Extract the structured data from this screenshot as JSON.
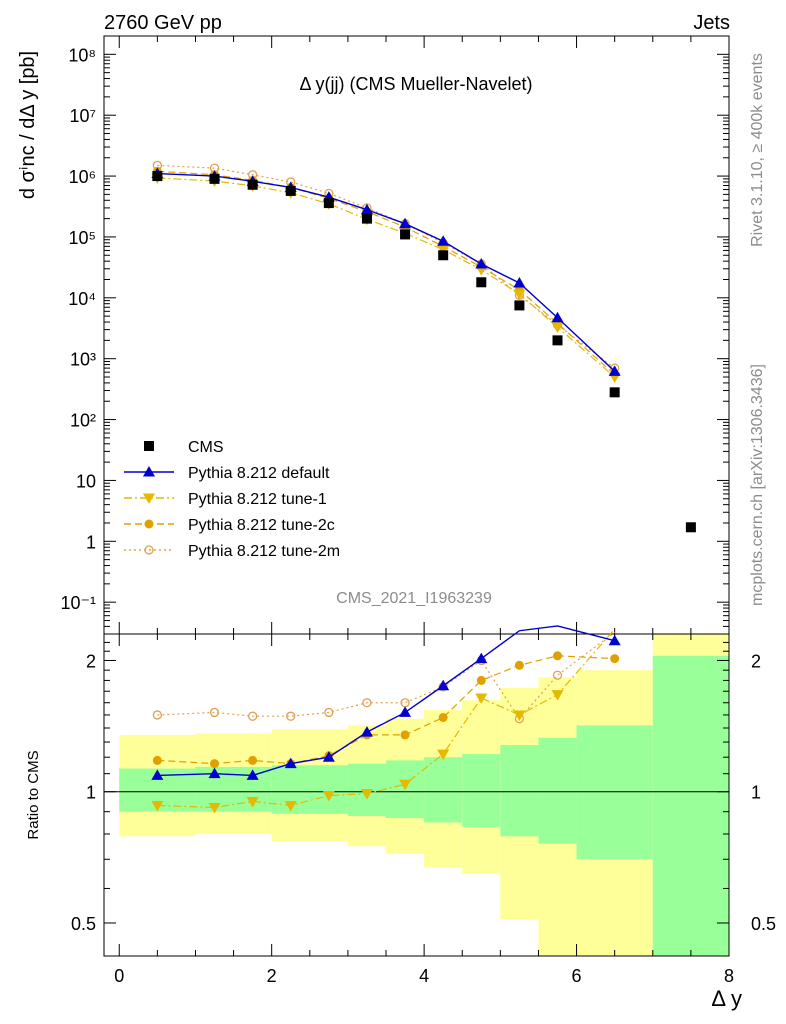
{
  "header": {
    "left": "2760 GeV pp",
    "right": "Jets"
  },
  "side_labels": {
    "rivet": "Rivet 3.1.10, ≥ 400k events",
    "mcplots": "mcplots.cern.ch [arXiv:1306.3436]"
  },
  "chart_data": [
    {
      "type": "scatter",
      "title": "Δ y(jj) (CMS Mueller-Navelet)",
      "ylabel": "d σⁱnc / dΔ y [pb]",
      "xlabel": "Δ y",
      "yscale": "log",
      "ylim": [
        0.03,
        200000000
      ],
      "xlim": [
        -0.2,
        8.0
      ],
      "analysis_id": "CMS_2021_I1963239",
      "legend_position": "bottom-left",
      "y_tick_labels": [
        "10⁻¹",
        "1",
        "10",
        "10²",
        "10³",
        "10⁴",
        "10⁵",
        "10⁶",
        "10⁷",
        "10⁸"
      ],
      "series": [
        {
          "name": "CMS",
          "marker": "square",
          "color": "#000000",
          "x": [
            0.5,
            1.25,
            1.75,
            2.25,
            2.75,
            3.25,
            3.75,
            4.25,
            4.75,
            5.25,
            5.75,
            6.5,
            7.5
          ],
          "y": [
            1000000,
            900000,
            720000,
            570000,
            360000,
            200000,
            110000,
            50000,
            18000,
            7500,
            2000,
            280,
            1.7
          ]
        },
        {
          "name": "Pythia 8.212 default",
          "marker": "triangle-up",
          "line": "solid",
          "color": "#0000cc",
          "x": [
            0.5,
            1.25,
            1.75,
            2.25,
            2.75,
            3.25,
            3.75,
            4.25,
            4.75,
            5.25,
            5.75,
            6.5
          ],
          "y": [
            1100000,
            1000000,
            820000,
            650000,
            450000,
            280000,
            165000,
            85000,
            36000,
            17500,
            4700,
            620
          ]
        },
        {
          "name": "Pythia 8.212 tune-1",
          "marker": "triangle-down",
          "line": "dashdot",
          "color": "#e6b800",
          "x": [
            0.5,
            1.25,
            1.75,
            2.25,
            2.75,
            3.25,
            3.75,
            4.25,
            4.75,
            5.25,
            5.75,
            6.5
          ],
          "y": [
            930000,
            830000,
            690000,
            530000,
            350000,
            195000,
            115000,
            62000,
            29000,
            11500,
            3300,
            500
          ]
        },
        {
          "name": "Pythia 8.212 tune-2c",
          "marker": "circle",
          "line": "dashed",
          "color": "#e0a000",
          "x": [
            0.5,
            1.25,
            1.75,
            2.25,
            2.75,
            3.25,
            3.75,
            4.25,
            4.75,
            5.25,
            5.75,
            6.5
          ],
          "y": [
            1200000,
            1050000,
            850000,
            650000,
            430000,
            260000,
            145000,
            70000,
            32000,
            13500,
            3800,
            550
          ]
        },
        {
          "name": "Pythia 8.212 tune-2m",
          "marker": "circle-open",
          "line": "dotted",
          "color": "#e0a050",
          "x": [
            0.5,
            1.25,
            1.75,
            2.25,
            2.75,
            3.25,
            3.75,
            4.25,
            4.75,
            5.25,
            5.75,
            6.5
          ],
          "y": [
            1500000,
            1350000,
            1050000,
            800000,
            520000,
            300000,
            165000,
            80000,
            36000,
            11000,
            3600,
            700
          ]
        }
      ]
    },
    {
      "type": "scatter",
      "ylabel": "Ratio to CMS",
      "xlabel": "Δ y",
      "yscale": "log",
      "ylim": [
        0.42,
        2.3
      ],
      "xlim": [
        -0.2,
        8.0
      ],
      "x_ticks": [
        0,
        2,
        4,
        6,
        8
      ],
      "y_ticks": [
        0.5,
        1,
        2
      ],
      "bands": {
        "edges": [
          0,
          1,
          2,
          3,
          3.5,
          4,
          4.5,
          5,
          5.5,
          6,
          7,
          8
        ],
        "stat_lo": [
          0.9,
          0.9,
          0.89,
          0.88,
          0.87,
          0.85,
          0.83,
          0.79,
          0.76,
          0.7,
          0.35
        ],
        "stat_hi": [
          1.13,
          1.14,
          1.15,
          1.16,
          1.18,
          1.2,
          1.22,
          1.28,
          1.33,
          1.42,
          2.05
        ],
        "syst_lo": [
          0.79,
          0.8,
          0.77,
          0.75,
          0.72,
          0.67,
          0.65,
          0.51,
          0.37,
          0.35,
          0.35
        ],
        "syst_hi": [
          1.35,
          1.36,
          1.39,
          1.42,
          1.47,
          1.54,
          1.62,
          1.73,
          1.83,
          1.9,
          2.3
        ],
        "colors": {
          "stat": "#99ff99",
          "syst": "#ffff99"
        }
      },
      "series": [
        {
          "name": "Pythia 8.212 default",
          "marker": "triangle-up",
          "line": "solid",
          "color": "#0000cc",
          "x": [
            0.5,
            1.25,
            1.75,
            2.25,
            2.75,
            3.25,
            3.75,
            4.25,
            4.75,
            5.25,
            5.75,
            6.5
          ],
          "y": [
            1.09,
            1.1,
            1.09,
            1.16,
            1.2,
            1.37,
            1.52,
            1.75,
            2.02,
            2.34,
            2.4,
            2.22
          ]
        },
        {
          "name": "Pythia 8.212 tune-1",
          "marker": "triangle-down",
          "line": "dashdot",
          "color": "#e6b800",
          "x": [
            0.5,
            1.25,
            1.75,
            2.25,
            2.75,
            3.25,
            3.75,
            4.25,
            4.75,
            5.25,
            5.75,
            6.5
          ],
          "y": [
            0.93,
            0.92,
            0.95,
            0.93,
            0.98,
            0.99,
            1.04,
            1.22,
            1.64,
            1.5,
            1.67,
            2.36
          ]
        },
        {
          "name": "Pythia 8.212 tune-2c",
          "marker": "circle",
          "line": "dashed",
          "color": "#e0a000",
          "x": [
            0.5,
            1.25,
            1.75,
            2.25,
            2.75,
            3.25,
            3.75,
            4.25,
            4.75,
            5.25,
            5.75,
            6.5
          ],
          "y": [
            1.18,
            1.16,
            1.18,
            1.16,
            1.21,
            1.35,
            1.35,
            1.48,
            1.8,
            1.95,
            2.05,
            2.02
          ]
        },
        {
          "name": "Pythia 8.212 tune-2m",
          "marker": "circle-open",
          "line": "dotted",
          "color": "#e0a050",
          "x": [
            0.5,
            1.25,
            1.75,
            2.25,
            2.75,
            3.25,
            3.75,
            4.25,
            4.75,
            5.25,
            5.75,
            6.5
          ],
          "y": [
            1.5,
            1.52,
            1.49,
            1.49,
            1.52,
            1.6,
            1.6,
            1.74,
            2.0,
            1.47,
            1.85,
            2.32
          ]
        }
      ]
    }
  ]
}
